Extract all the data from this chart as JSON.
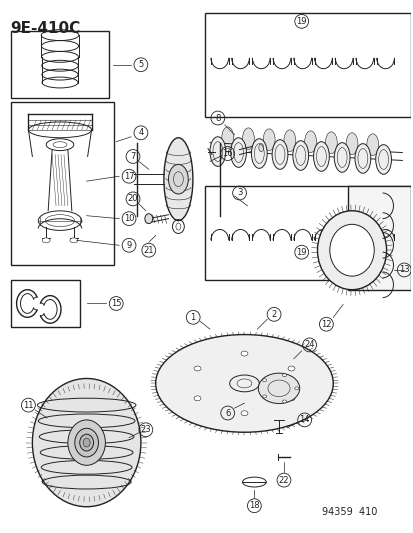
{
  "title": "9E-410C",
  "footer": "94359  410",
  "bg_color": "#ffffff",
  "line_color": "#222222",
  "fig_width": 4.14,
  "fig_height": 5.33,
  "dpi": 100
}
